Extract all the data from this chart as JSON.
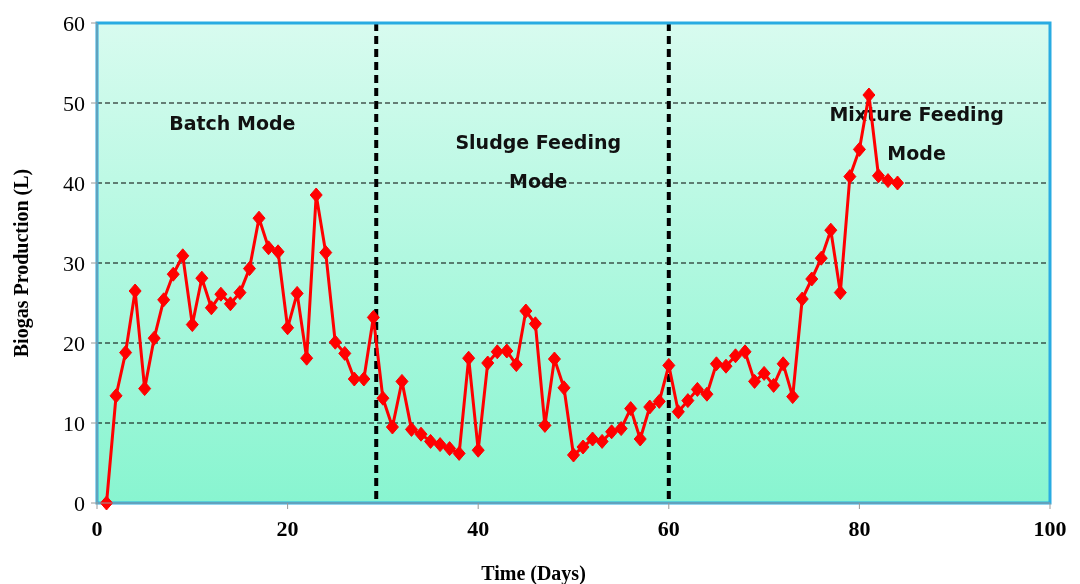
{
  "chart_data": {
    "type": "line",
    "xlabel": "Time (Days)",
    "ylabel": "Biogas Production (L)",
    "x": [
      1,
      2,
      3,
      4,
      5,
      6,
      7,
      8,
      9,
      10,
      11,
      12,
      13,
      14,
      15,
      16,
      17,
      18,
      19,
      20,
      21,
      22,
      23,
      24,
      25,
      26,
      27,
      28,
      29,
      30,
      31,
      32,
      33,
      34,
      35,
      36,
      37,
      38,
      39,
      40,
      41,
      42,
      43,
      44,
      45,
      46,
      47,
      48,
      49,
      50,
      51,
      52,
      53,
      54,
      55,
      56,
      57,
      58,
      59,
      60,
      61,
      62,
      63,
      64,
      65,
      66,
      67,
      68,
      69,
      70,
      71,
      72,
      73,
      74,
      75,
      76,
      77,
      78,
      79,
      80,
      81,
      82,
      83,
      84
    ],
    "series": [
      {
        "color": "#ff0000",
        "values": [
          0,
          13.4,
          18.8,
          26.5,
          14.3,
          20.6,
          25.4,
          28.6,
          30.9,
          22.3,
          28.1,
          24.4,
          26.1,
          24.9,
          26.3,
          29.3,
          35.6,
          31.9,
          31.4,
          21.9,
          26.2,
          18.1,
          38.5,
          31.3,
          20.1,
          18.7,
          15.5,
          15.5,
          23.2,
          13.1,
          9.5,
          15.2,
          9.2,
          8.6,
          7.7,
          7.3,
          6.8,
          6.2,
          18.1,
          6.6,
          17.5,
          18.9,
          19.0,
          17.3,
          24.0,
          22.4,
          9.7,
          18.0,
          14.4,
          6.0,
          7.0,
          8.0,
          7.7,
          8.9,
          9.3,
          11.8,
          8.0,
          12.0,
          12.7,
          17.2,
          11.4,
          12.8,
          14.2,
          13.6,
          17.4,
          17.1,
          18.4,
          18.9,
          15.2,
          16.2,
          14.7,
          17.4,
          13.3,
          25.5,
          28.0,
          30.6,
          34.1,
          26.3,
          40.8,
          44.2,
          51.0,
          40.9,
          40.3,
          40.0
        ]
      }
    ],
    "xlim": [
      0,
      100
    ],
    "xticks": [
      0,
      20,
      40,
      60,
      80,
      100
    ],
    "ylim": [
      0,
      60
    ],
    "yticks": [
      0,
      10,
      20,
      30,
      40,
      50,
      60
    ],
    "grid": "y",
    "marker": "diamond",
    "line_style": "solid",
    "ref_lines": [
      {
        "axis": "x",
        "value": 29.3,
        "color": "#000000",
        "line_style": "dashed"
      },
      {
        "axis": "x",
        "value": 60,
        "color": "#000000",
        "line_style": "dashed"
      }
    ],
    "annotations": [
      "Batch Mode",
      "Sludge Feeding Mode",
      "Mixture Feeding Mode"
    ]
  }
}
